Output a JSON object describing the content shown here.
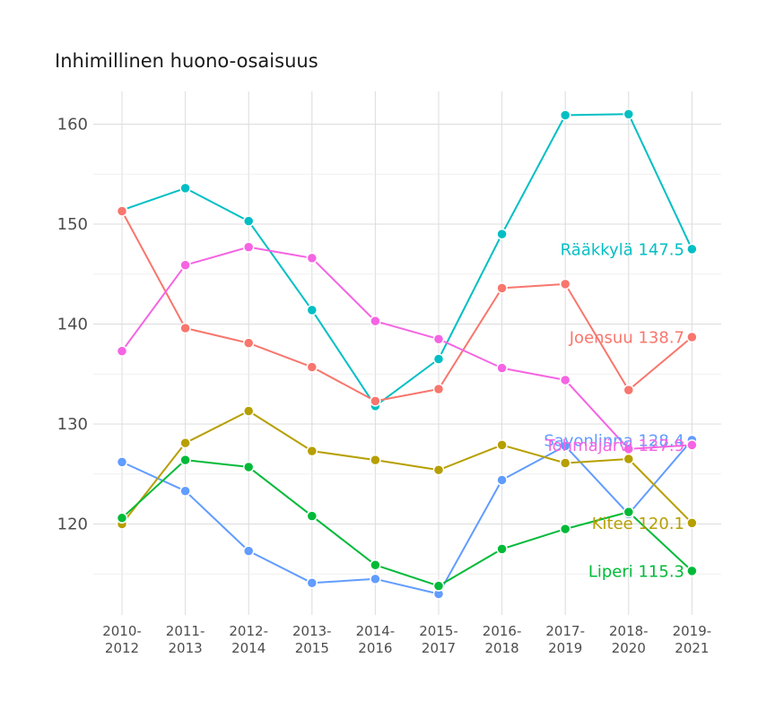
{
  "chart_data": {
    "type": "line",
    "title": "Inhimillinen huono-osaisuus",
    "xlabel": "",
    "ylabel": "",
    "categories": [
      [
        "2010-",
        "2012"
      ],
      [
        "2011-",
        "2013"
      ],
      [
        "2012-",
        "2014"
      ],
      [
        "2013-",
        "2015"
      ],
      [
        "2014-",
        "2016"
      ],
      [
        "2015-",
        "2017"
      ],
      [
        "2016-",
        "2018"
      ],
      [
        "2017-",
        "2019"
      ],
      [
        "2018-",
        "2020"
      ],
      [
        "2019-",
        "2021"
      ]
    ],
    "yticks": [
      120,
      130,
      140,
      150,
      160
    ],
    "ylim": [
      111,
      166
    ],
    "grid": true,
    "legend": "none",
    "series": [
      {
        "name": "Rääkkylä",
        "color": "#00BFC4",
        "end_label": "Rääkkylä 147.5",
        "values": [
          151.4,
          153.6,
          150.3,
          141.4,
          131.8,
          136.5,
          149.0,
          160.9,
          161.0,
          147.5
        ]
      },
      {
        "name": "Joensuu",
        "color": "#F8766D",
        "end_label": "Joensuu 138.7",
        "values": [
          151.3,
          139.6,
          138.1,
          135.7,
          132.3,
          133.5,
          143.6,
          144.0,
          133.4,
          138.7
        ]
      },
      {
        "name": "Savonlinna",
        "color": "#619CFF",
        "end_label": "Savonlinna 128.4",
        "values": [
          126.2,
          123.3,
          117.3,
          114.1,
          114.5,
          113.0,
          124.4,
          127.8,
          121.0,
          128.4
        ]
      },
      {
        "name": "Tohmajärvi",
        "color": "#F564E3",
        "end_label": "Tohmajärvi 127.9",
        "values": [
          137.3,
          145.9,
          147.7,
          146.6,
          140.3,
          138.5,
          135.6,
          134.4,
          127.5,
          127.9
        ]
      },
      {
        "name": "Kitee",
        "color": "#B79F00",
        "end_label": "Kitee 120.1",
        "values": [
          120.0,
          128.1,
          131.3,
          127.3,
          126.4,
          125.4,
          127.9,
          126.1,
          126.5,
          120.1
        ]
      },
      {
        "name": "Liperi",
        "color": "#00BA38",
        "end_label": "Liperi 115.3",
        "values": [
          120.6,
          126.4,
          125.7,
          120.8,
          115.9,
          113.8,
          117.5,
          119.5,
          121.2,
          115.3
        ]
      }
    ]
  }
}
